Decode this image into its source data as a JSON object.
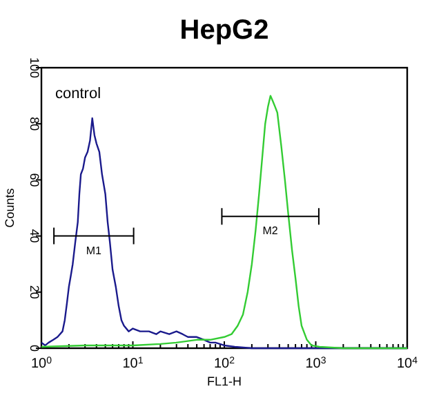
{
  "chart_data": {
    "type": "line",
    "title": "HepG2",
    "xlabel": "FL1-H",
    "ylabel": "Counts",
    "log": "x",
    "xlim": [
      1,
      10000
    ],
    "ylim": [
      0,
      100
    ],
    "xticks": [
      {
        "value": 1,
        "label": "10$^{0}$"
      },
      {
        "value": 2,
        "label": null
      },
      {
        "value": 3,
        "label": null
      },
      {
        "value": 4,
        "label": null
      },
      {
        "value": 5,
        "label": null
      },
      {
        "value": 6,
        "label": null
      },
      {
        "value": 7,
        "label": null
      },
      {
        "value": 8,
        "label": null
      },
      {
        "value": 9,
        "label": null
      },
      {
        "value": 10,
        "label": "10$^{1}$"
      },
      {
        "value": 20,
        "label": null
      },
      {
        "value": 30,
        "label": null
      },
      {
        "value": 40,
        "label": null
      },
      {
        "value": 50,
        "label": null
      },
      {
        "value": 60,
        "label": null
      },
      {
        "value": 70,
        "label": null
      },
      {
        "value": 80,
        "label": null
      },
      {
        "value": 90,
        "label": null
      },
      {
        "value": 100,
        "label": "10$^{2}$"
      },
      {
        "value": 200,
        "label": null
      },
      {
        "value": 300,
        "label": null
      },
      {
        "value": 400,
        "label": null
      },
      {
        "value": 500,
        "label": null
      },
      {
        "value": 600,
        "label": null
      },
      {
        "value": 700,
        "label": null
      },
      {
        "value": 800,
        "label": null
      },
      {
        "value": 900,
        "label": null
      },
      {
        "value": 1000,
        "label": "10$^{3}$"
      },
      {
        "value": 2000,
        "label": null
      },
      {
        "value": 3000,
        "label": null
      },
      {
        "value": 4000,
        "label": null
      },
      {
        "value": 5000,
        "label": null
      },
      {
        "value": 6000,
        "label": null
      },
      {
        "value": 7000,
        "label": null
      },
      {
        "value": 8000,
        "label": null
      },
      {
        "value": 9000,
        "label": null
      },
      {
        "value": 10000,
        "label": "10$^{4}$"
      }
    ],
    "yticks": [
      0,
      20,
      40,
      60,
      80,
      100
    ],
    "grid": false,
    "marker": "none",
    "line_style": "solid",
    "series": [
      {
        "color": "#1a1a8c",
        "x": [
          1,
          1.1,
          1.2,
          1.35,
          1.5,
          1.7,
          1.8,
          1.9,
          2.0,
          2.1,
          2.2,
          2.35,
          2.5,
          2.6,
          2.7,
          2.85,
          3.0,
          3.2,
          3.4,
          3.6,
          3.8,
          4.0,
          4.3,
          4.6,
          5.0,
          5.3,
          5.6,
          6.0,
          6.5,
          7,
          7.5,
          8,
          9,
          10,
          12,
          15,
          18,
          20,
          25,
          30,
          35,
          40,
          50,
          60,
          70,
          80,
          100,
          130,
          200,
          500,
          1000,
          10000
        ],
        "values": [
          2,
          1,
          2,
          3,
          4,
          6,
          10,
          16,
          22,
          26,
          30,
          38,
          45,
          55,
          62,
          64,
          68,
          70,
          74,
          82,
          76,
          73,
          70,
          62,
          55,
          45,
          38,
          28,
          22,
          15,
          10,
          8,
          6,
          7,
          6,
          6,
          5,
          6,
          5,
          6,
          5,
          4,
          4,
          3,
          2,
          2,
          1,
          0.5,
          0,
          0,
          0,
          0
        ]
      },
      {
        "color": "#33cc33",
        "x": [
          1,
          3,
          10,
          20,
          30,
          50,
          70,
          100,
          120,
          140,
          160,
          180,
          200,
          220,
          240,
          260,
          280,
          300,
          320,
          340,
          360,
          380,
          420,
          460,
          500,
          550,
          600,
          650,
          700,
          800,
          900,
          1100,
          2000,
          10000
        ],
        "values": [
          0.5,
          1,
          1,
          1.5,
          2,
          3,
          3,
          4,
          5,
          8,
          12,
          20,
          30,
          42,
          55,
          68,
          80,
          86,
          90,
          88,
          86,
          84,
          72,
          60,
          48,
          35,
          25,
          15,
          8,
          3,
          1,
          0.5,
          0,
          0
        ]
      },
      {
        "color": "#000000",
        "x": [
          1.37,
          10.2
        ],
        "values": [
          40,
          40
        ]
      },
      {
        "color": "#000000",
        "x": [
          94,
          1080
        ],
        "values": [
          47,
          47
        ]
      }
    ],
    "annotations": [
      "control",
      "M1",
      "M2"
    ]
  }
}
